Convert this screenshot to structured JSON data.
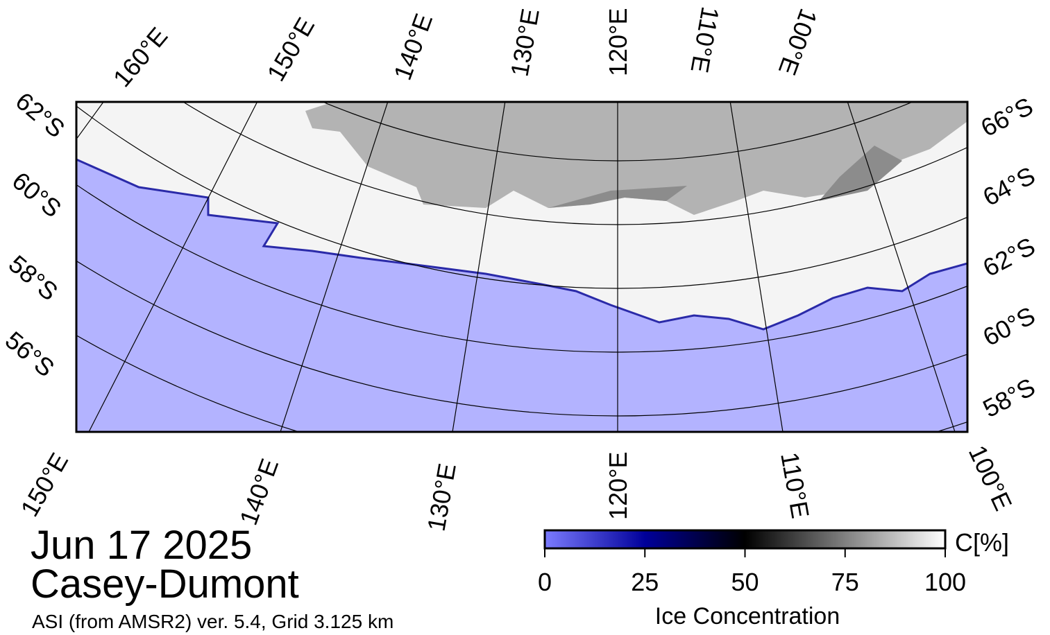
{
  "map": {
    "top_labels": [
      "160°E",
      "150°E",
      "140°E",
      "130°E",
      "120°E",
      "110°E",
      "100°E"
    ],
    "left_labels": [
      "62°S",
      "60°S",
      "58°S",
      "56°S"
    ],
    "right_labels": [
      "66°S",
      "64°S",
      "62°S",
      "60°S",
      "58°S"
    ],
    "bottom_labels": [
      "150°E",
      "140°E",
      "130°E",
      "120°E",
      "110°E",
      "100°E"
    ]
  },
  "date": "Jun 17 2025",
  "region": "Casey-Dumont",
  "product": "ASI (from AMSR2) ver. 5.4,  Grid 3.125 km",
  "colorbar": {
    "lim": [
      0,
      100
    ],
    "ticks": [
      0,
      25,
      50,
      75,
      100
    ],
    "unit": "C[%]",
    "label": "Ice Concentration"
  }
}
